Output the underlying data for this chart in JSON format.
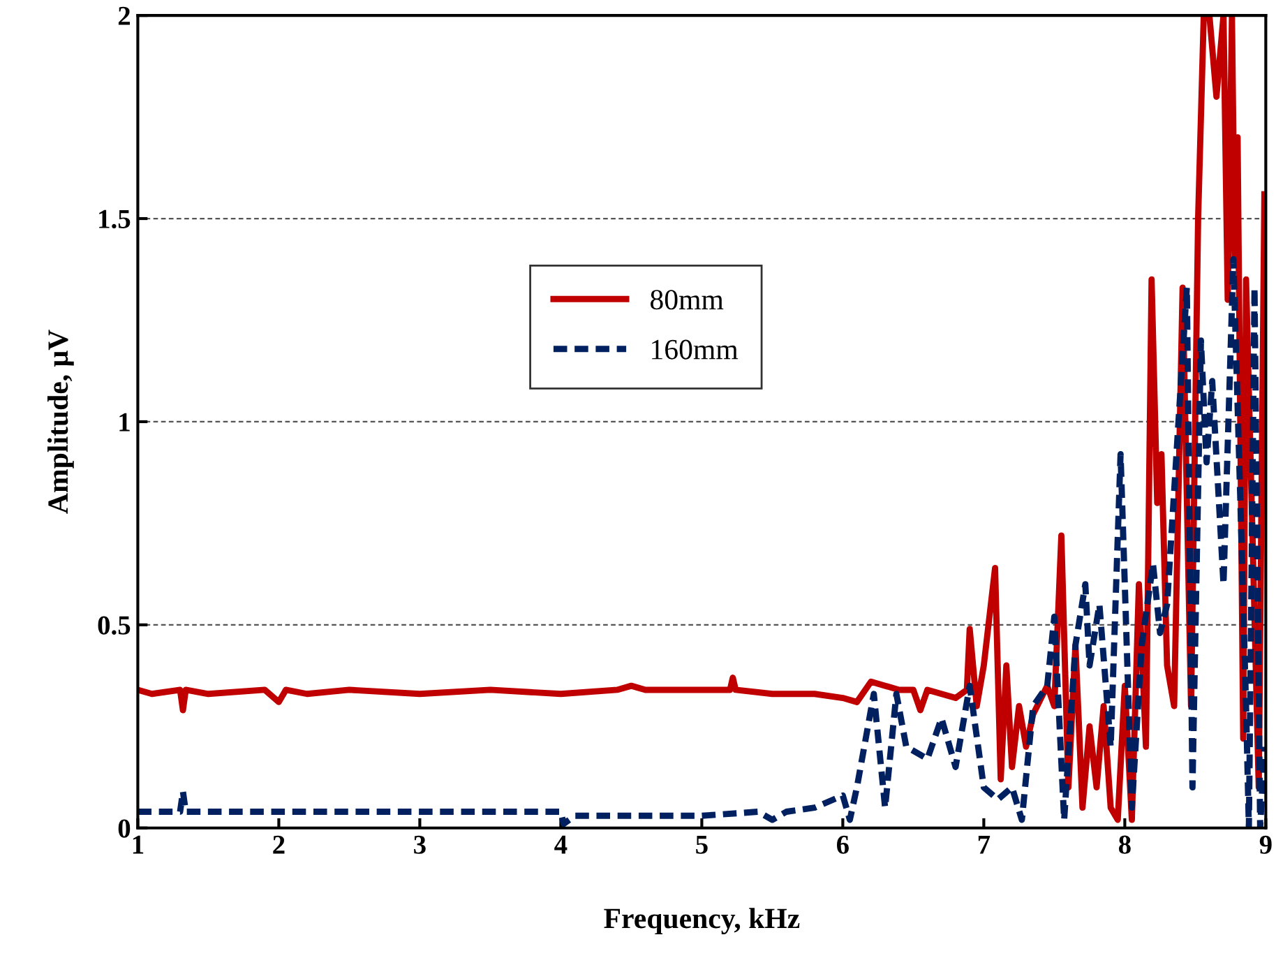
{
  "chart_data": {
    "type": "line",
    "xlabel": "Frequency, kHz",
    "ylabel": "Amplitude, μV",
    "xlim": [
      1,
      9
    ],
    "xticks": [
      1,
      2,
      3,
      4,
      5,
      6,
      7,
      8,
      9
    ],
    "ylim": [
      0,
      2
    ],
    "yticks": [
      0,
      0.5,
      1,
      1.5,
      2
    ],
    "grid": "y",
    "legend": "top center",
    "marker": "none",
    "series": [
      {
        "name": "80mm",
        "color": "#c00000",
        "line_style": "solid",
        "x": [
          1.0,
          1.1,
          1.3,
          1.32,
          1.34,
          1.5,
          1.9,
          2.0,
          2.05,
          2.2,
          2.5,
          3.0,
          3.5,
          4.0,
          4.4,
          4.5,
          4.6,
          5.0,
          5.2,
          5.22,
          5.24,
          5.5,
          5.8,
          6.0,
          6.1,
          6.2,
          6.4,
          6.5,
          6.55,
          6.6,
          6.8,
          6.88,
          6.9,
          6.95,
          7.0,
          7.08,
          7.12,
          7.16,
          7.2,
          7.25,
          7.3,
          7.35,
          7.45,
          7.5,
          7.55,
          7.6,
          7.65,
          7.7,
          7.75,
          7.8,
          7.85,
          7.9,
          7.95,
          8.0,
          8.05,
          8.1,
          8.15,
          8.19,
          8.23,
          8.26,
          8.3,
          8.35,
          8.41,
          8.47,
          8.52,
          8.56,
          8.6,
          8.65,
          8.7,
          8.73,
          8.76,
          8.78,
          8.8,
          8.84,
          8.86,
          8.9,
          8.95,
          8.99
        ],
        "values": [
          0.34,
          0.33,
          0.34,
          0.29,
          0.34,
          0.33,
          0.34,
          0.31,
          0.34,
          0.33,
          0.34,
          0.33,
          0.34,
          0.33,
          0.34,
          0.35,
          0.34,
          0.34,
          0.34,
          0.37,
          0.34,
          0.33,
          0.33,
          0.32,
          0.31,
          0.36,
          0.34,
          0.34,
          0.29,
          0.34,
          0.32,
          0.34,
          0.49,
          0.3,
          0.4,
          0.64,
          0.12,
          0.4,
          0.15,
          0.3,
          0.2,
          0.28,
          0.35,
          0.3,
          0.72,
          0.1,
          0.45,
          0.05,
          0.25,
          0.1,
          0.3,
          0.05,
          0.02,
          0.35,
          0.02,
          0.6,
          0.2,
          1.35,
          0.8,
          0.92,
          0.4,
          0.3,
          1.33,
          0.3,
          1.5,
          2.0,
          2.0,
          1.8,
          2.0,
          1.3,
          2.0,
          1.4,
          1.7,
          0.22,
          1.35,
          0.8,
          0.1,
          1.56
        ]
      },
      {
        "name": "160mm",
        "color": "#002060",
        "line_style": "dashed",
        "x": [
          1.0,
          1.2,
          1.3,
          1.32,
          1.34,
          1.5,
          2.0,
          2.5,
          3.0,
          3.5,
          4.0,
          4.02,
          4.1,
          4.5,
          5.0,
          5.4,
          5.5,
          5.6,
          5.8,
          6.0,
          6.05,
          6.1,
          6.22,
          6.3,
          6.38,
          6.45,
          6.6,
          6.7,
          6.8,
          6.9,
          7.0,
          7.1,
          7.2,
          7.27,
          7.35,
          7.45,
          7.5,
          7.57,
          7.65,
          7.72,
          7.75,
          7.82,
          7.9,
          7.97,
          8.0,
          8.05,
          8.12,
          8.2,
          8.25,
          8.3,
          8.44,
          8.48,
          8.54,
          8.58,
          8.62,
          8.66,
          8.7,
          8.77,
          8.82,
          8.86,
          8.88,
          8.92,
          8.96,
          8.99
        ],
        "values": [
          0.04,
          0.04,
          0.04,
          0.09,
          0.04,
          0.04,
          0.04,
          0.04,
          0.04,
          0.04,
          0.04,
          0.01,
          0.03,
          0.03,
          0.03,
          0.04,
          0.02,
          0.04,
          0.05,
          0.08,
          0.02,
          0.1,
          0.33,
          0.05,
          0.33,
          0.2,
          0.17,
          0.27,
          0.15,
          0.35,
          0.1,
          0.07,
          0.1,
          0.02,
          0.3,
          0.35,
          0.52,
          0.02,
          0.45,
          0.6,
          0.4,
          0.55,
          0.2,
          0.92,
          0.6,
          0.05,
          0.45,
          0.65,
          0.48,
          0.55,
          1.33,
          0.1,
          1.2,
          0.9,
          1.1,
          0.85,
          0.6,
          1.4,
          0.8,
          0.3,
          0.0,
          1.33,
          0.0,
          0.2
        ]
      }
    ]
  }
}
